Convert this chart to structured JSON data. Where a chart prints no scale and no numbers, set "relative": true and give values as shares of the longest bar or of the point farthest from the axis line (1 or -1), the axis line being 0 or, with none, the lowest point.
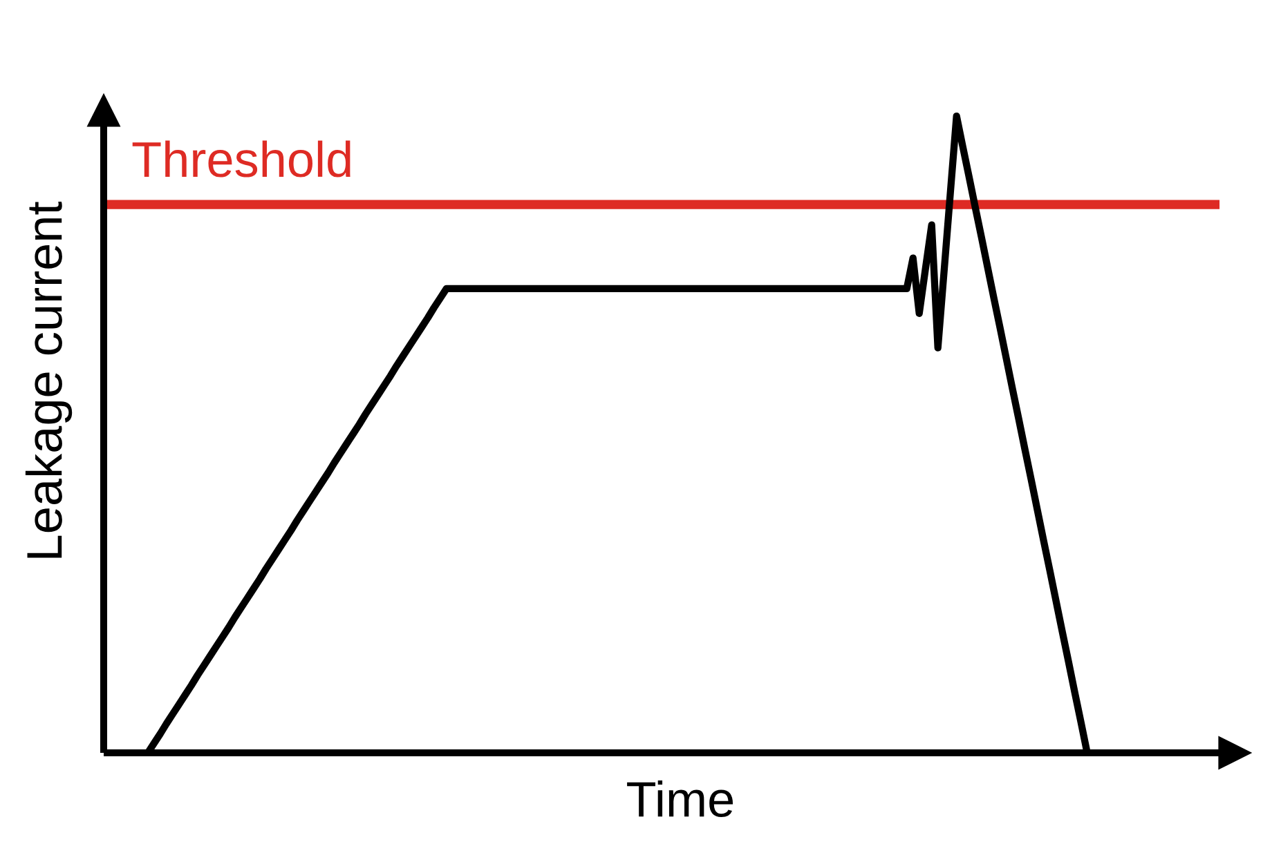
{
  "chart_data": {
    "type": "line",
    "xlabel": "Time",
    "ylabel": "Leakage current",
    "relative": true,
    "color": "#000000",
    "categories": [
      null,
      null,
      null,
      null,
      null,
      null,
      null,
      null,
      null,
      null,
      null,
      null,
      null,
      null,
      null,
      null,
      null,
      null,
      null,
      null,
      null,
      null,
      null,
      null,
      null,
      null,
      null,
      null,
      null,
      null,
      null,
      null,
      null,
      null,
      null,
      null,
      null,
      null,
      null,
      null,
      null,
      null,
      null,
      null,
      null,
      null,
      null,
      null,
      null,
      null,
      null,
      null,
      null,
      null,
      null,
      null,
      null,
      null,
      null,
      null,
      null,
      null,
      null,
      null,
      null,
      null,
      null,
      null,
      null,
      null,
      null,
      null,
      null,
      null,
      null,
      null,
      null,
      null,
      null,
      null,
      null,
      null,
      null,
      null,
      null,
      null,
      null,
      null,
      null,
      null,
      null,
      null,
      null,
      null,
      null,
      null,
      null,
      null,
      null,
      null,
      null,
      null,
      null,
      null,
      null,
      null,
      null,
      null,
      null,
      null,
      null,
      null,
      null,
      null,
      null,
      null,
      null,
      null,
      null,
      null,
      null,
      null,
      null,
      null,
      null,
      null,
      null,
      null,
      null,
      null,
      null,
      null,
      null,
      null,
      null,
      null,
      null,
      null,
      null,
      null,
      null,
      null,
      null,
      null,
      null,
      null,
      null,
      null,
      null,
      null,
      null,
      null
    ],
    "values": [
      0,
      0.015,
      0.03,
      0.046,
      0.061,
      0.076,
      0.091,
      0.106,
      0.122,
      0.137,
      0.152,
      0.167,
      0.182,
      0.197,
      0.213,
      0.228,
      0.243,
      0.258,
      0.273,
      0.289,
      0.304,
      0.319,
      0.334,
      0.349,
      0.365,
      0.38,
      0.395,
      0.41,
      0.425,
      0.44,
      0.456,
      0.471,
      0.486,
      0.501,
      0.516,
      0.532,
      0.547,
      0.562,
      0.577,
      0.592,
      0.608,
      0.623,
      0.638,
      0.653,
      0.668,
      0.683,
      0.699,
      0.714,
      0.729,
      0.729,
      0.729,
      0.729,
      0.729,
      0.729,
      0.729,
      0.729,
      0.729,
      0.729,
      0.729,
      0.729,
      0.729,
      0.729,
      0.729,
      0.729,
      0.729,
      0.729,
      0.729,
      0.729,
      0.729,
      0.729,
      0.729,
      0.729,
      0.729,
      0.729,
      0.729,
      0.729,
      0.729,
      0.729,
      0.729,
      0.729,
      0.729,
      0.729,
      0.729,
      0.729,
      0.729,
      0.729,
      0.729,
      0.729,
      0.729,
      0.729,
      0.729,
      0.729,
      0.729,
      0.729,
      0.729,
      0.729,
      0.729,
      0.729,
      0.729,
      0.729,
      0.729,
      0.729,
      0.729,
      0.729,
      0.729,
      0.729,
      0.729,
      0.729,
      0.729,
      0.729,
      0.729,
      0.729,
      0.729,
      0.729,
      0.729,
      0.729,
      0.729,
      0.729,
      0.729,
      0.729,
      0.729,
      0.729,
      0.729,
      0.777,
      0.69,
      0.76,
      0.829,
      0.636,
      0.757,
      0.879,
      1,
      0.952,
      0.905,
      0.857,
      0.81,
      0.762,
      0.714,
      0.667,
      0.619,
      0.571,
      0.524,
      0.476,
      0.429,
      0.381,
      0.333,
      0.286,
      0.238,
      0.19,
      0.143,
      0.095,
      0.048,
      0
    ],
    "ref_lines": [
      {
        "axis": "y",
        "value": 0.861,
        "label": "Threshold",
        "color": "#de2b24"
      }
    ]
  }
}
